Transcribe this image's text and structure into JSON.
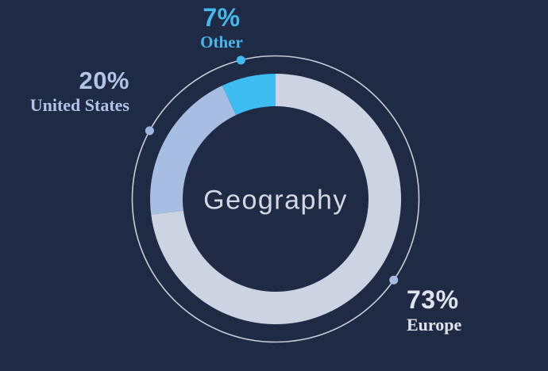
{
  "chart_data": {
    "type": "pie",
    "variant": "donut",
    "title": "Geography",
    "title_color": "#d3d8e2",
    "background": "#1f2a44",
    "ring_color": "#c7ccd6",
    "legend_position": "around",
    "start_angle_deg": 0,
    "direction": "clockwise",
    "segments": [
      {
        "label": "Europe",
        "value": 73,
        "display": "73%",
        "color": "#cdd3e1",
        "dot_color": "#a5bce2",
        "label_color": "#e0e3eb",
        "dot_angle_deg": 124.5
      },
      {
        "label": "United States",
        "value": 20,
        "display": "20%",
        "color": "#a8bde2",
        "dot_color": "#9fb7de",
        "label_color": "#b2c3e8",
        "dot_angle_deg": 298.5
      },
      {
        "label": "Other",
        "value": 7,
        "display": "7%",
        "color": "#3ebdf2",
        "dot_color": "#3ebdf2",
        "label_color": "#45b8ee",
        "dot_angle_deg": 346
      }
    ]
  }
}
